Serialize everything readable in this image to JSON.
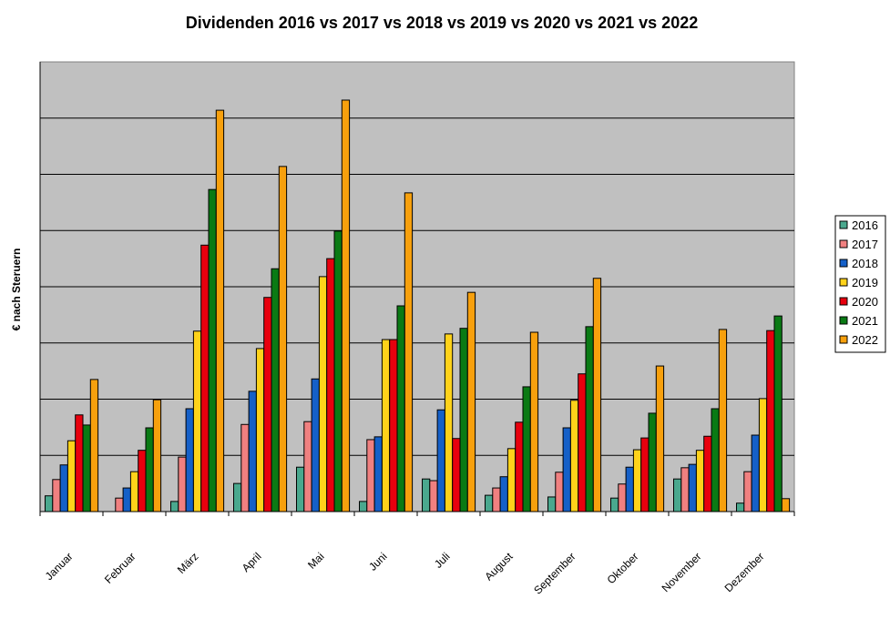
{
  "chart_data": {
    "type": "bar",
    "title": "Dividenden 2016 vs 2017 vs 2018 vs 2019 vs 2020 vs 2021 vs 2022",
    "xlabel": "",
    "ylabel": "€ nach Steruern",
    "ylim": [
      0,
      8
    ],
    "y_tick_labels": "none",
    "grid": true,
    "legend": "right",
    "categories": [
      "Januar",
      "Februar",
      "März",
      "April",
      "Mai",
      "Juni",
      "Juli",
      "August",
      "September",
      "Oktober",
      "November",
      "Dezember"
    ],
    "series": [
      {
        "name": "2016",
        "color": "#4aa88e",
        "values": [
          0.28,
          0,
          0.18,
          0.5,
          0.79,
          0.18,
          0.58,
          0.29,
          0.26,
          0.24,
          0.58,
          0.15
        ]
      },
      {
        "name": "2017",
        "color": "#f08080",
        "values": [
          0.57,
          0.24,
          0.97,
          1.55,
          1.6,
          1.28,
          0.55,
          0.42,
          0.7,
          0.49,
          0.78,
          0.71
        ]
      },
      {
        "name": "2018",
        "color": "#1560c8",
        "values": [
          0.83,
          0.42,
          1.83,
          2.14,
          2.36,
          1.33,
          1.81,
          0.62,
          1.49,
          0.79,
          0.84,
          1.36
        ]
      },
      {
        "name": "2019",
        "color": "#ffd21a",
        "values": [
          1.26,
          0.71,
          3.21,
          2.9,
          4.18,
          3.06,
          3.16,
          1.12,
          1.98,
          1.1,
          1.09,
          2.01
        ]
      },
      {
        "name": "2020",
        "color": "#e8000e",
        "values": [
          1.72,
          1.09,
          4.74,
          3.81,
          4.5,
          3.06,
          1.3,
          1.59,
          2.45,
          1.31,
          1.34,
          3.22
        ]
      },
      {
        "name": "2021",
        "color": "#0a7a14",
        "values": [
          1.54,
          1.49,
          5.73,
          4.32,
          4.99,
          3.66,
          3.26,
          2.22,
          3.29,
          1.75,
          1.83,
          3.48
        ]
      },
      {
        "name": "2022",
        "color": "#f7a00d",
        "values": [
          2.35,
          1.99,
          7.14,
          6.14,
          7.32,
          5.67,
          3.9,
          3.19,
          4.15,
          2.59,
          3.24,
          0.23
        ]
      }
    ],
    "plot_background": "#c0c0c0"
  }
}
